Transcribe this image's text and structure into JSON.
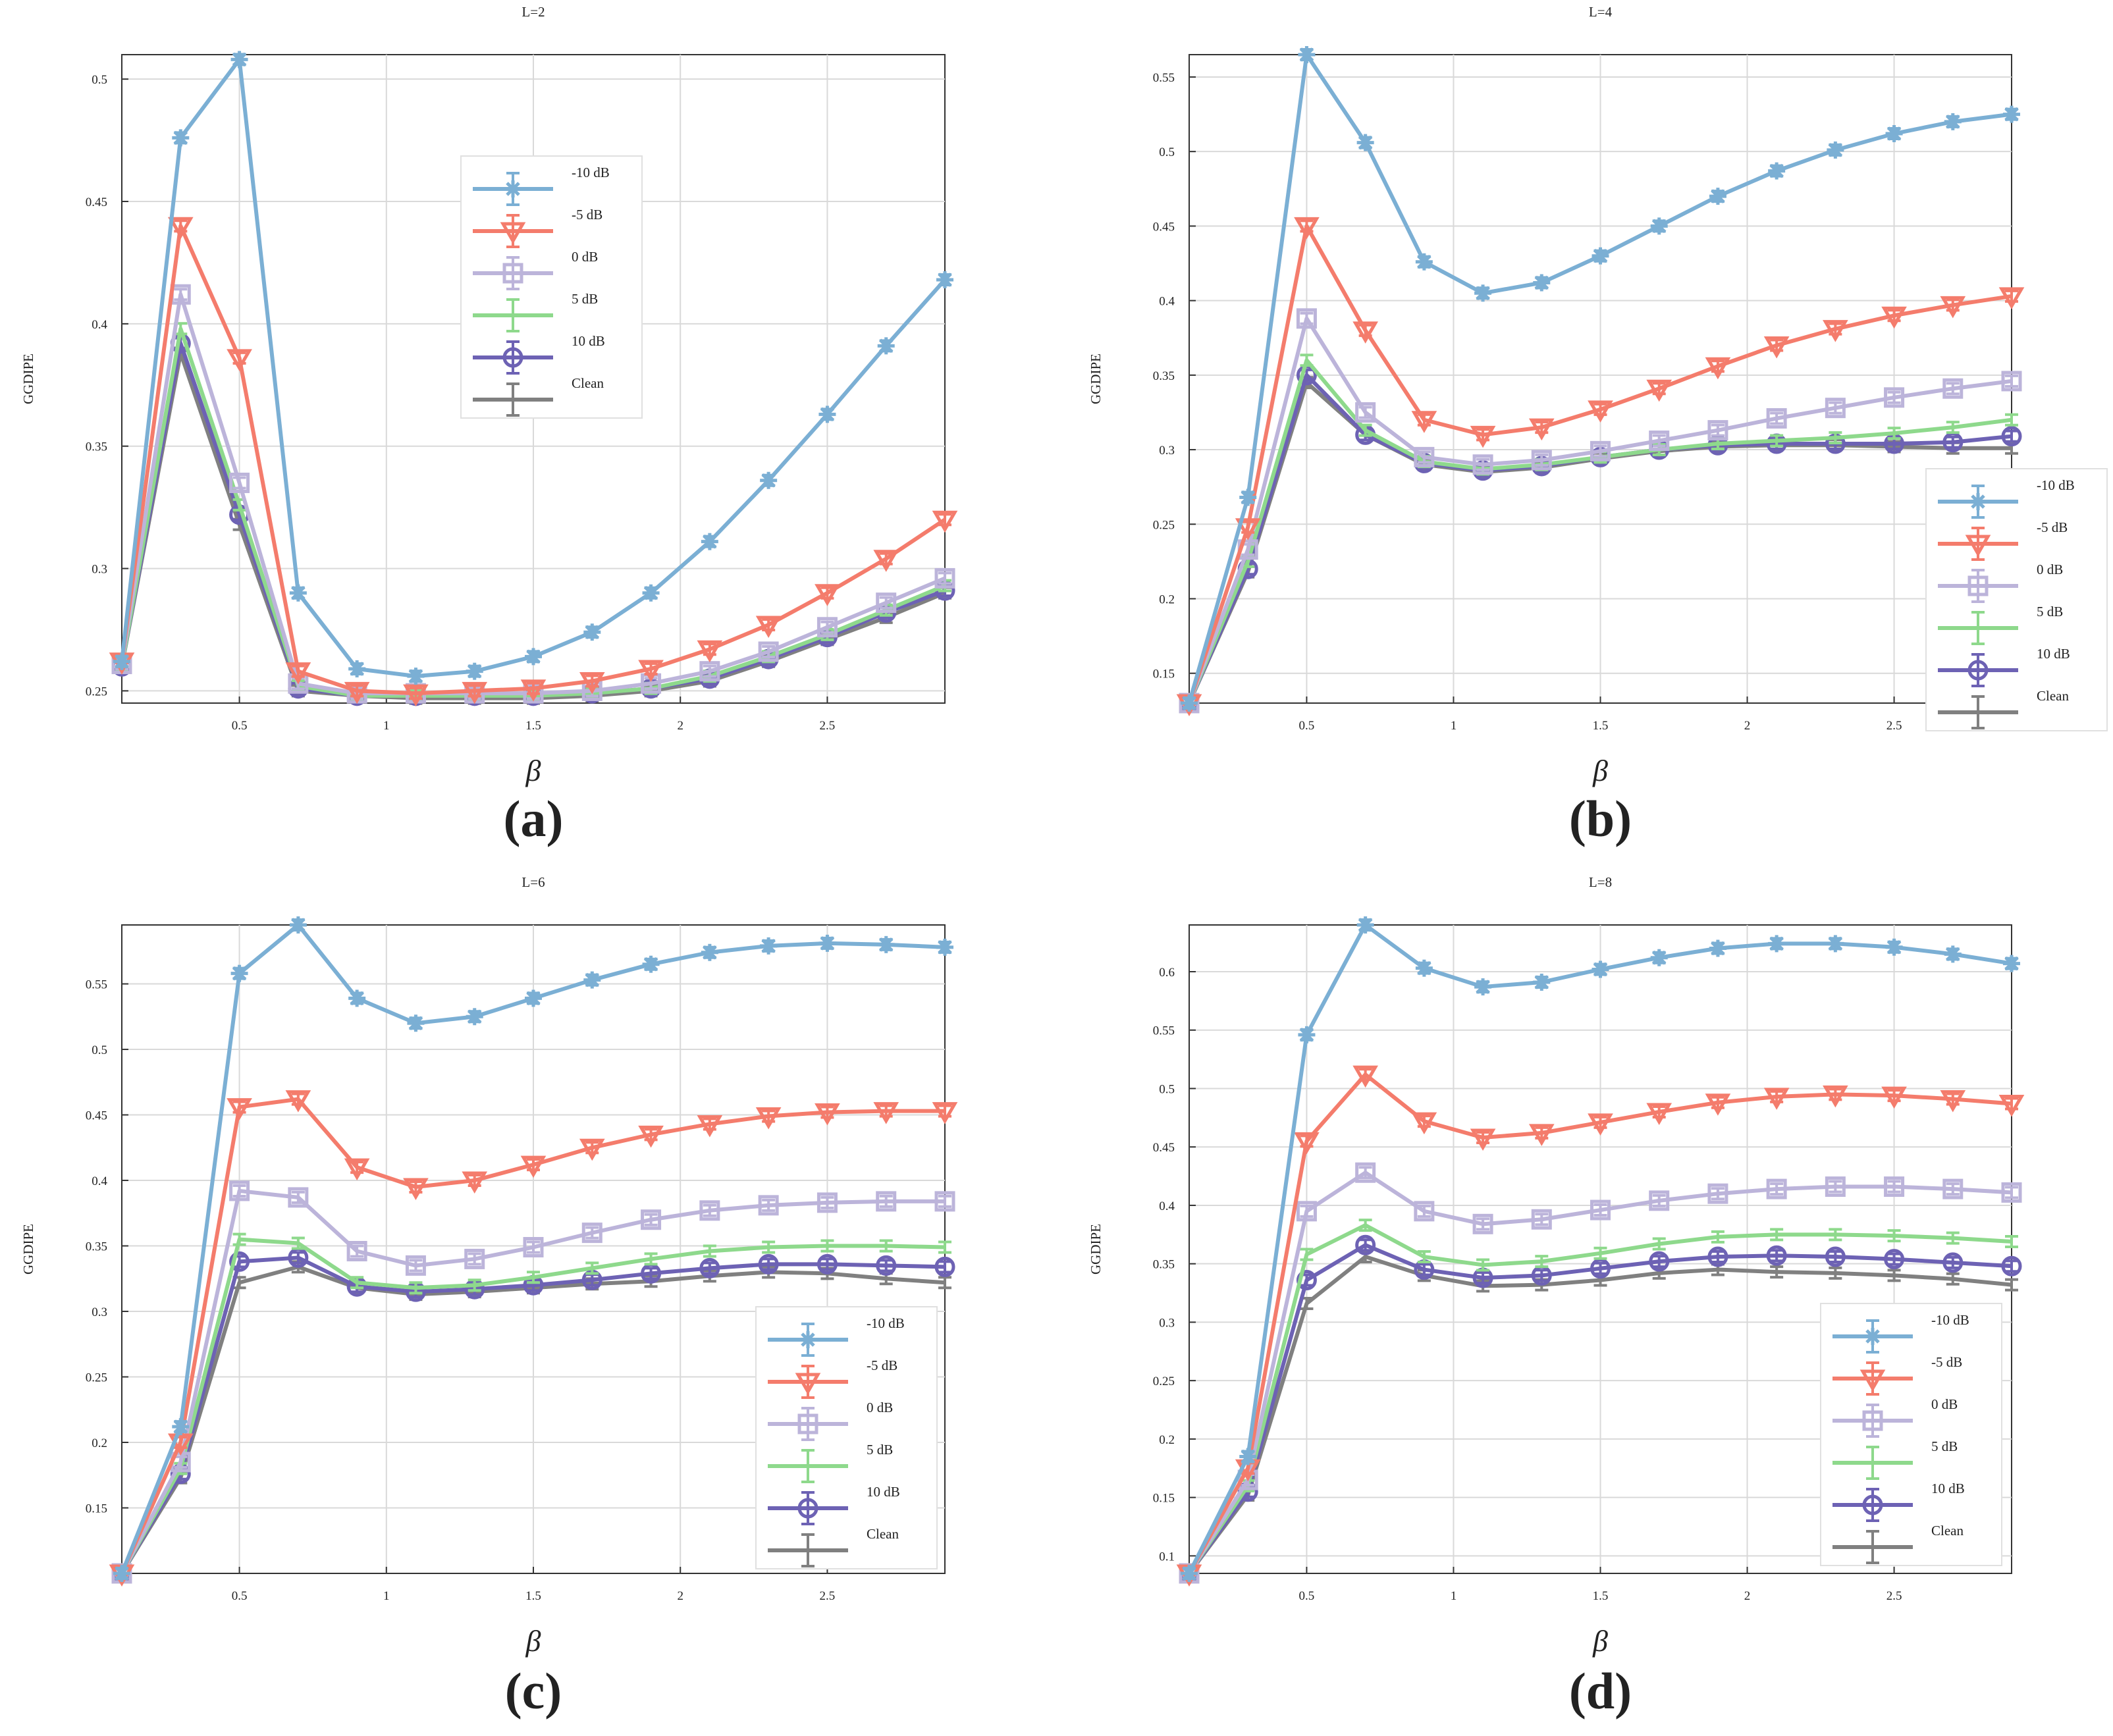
{
  "colors": {
    "-10 dB": "#7bafd4",
    "-5 dB": "#f47c6c",
    "0 dB": "#bcb4da",
    "5 dB": "#8ed98c",
    "10 dB": "#6d62b4",
    "Clean": "#808080"
  },
  "markers": {
    "-10 dB": "star",
    "-5 dB": "triangle-down",
    "0 dB": "square",
    "5 dB": "none",
    "10 dB": "circle",
    "Clean": "none"
  },
  "chart_data": [
    {
      "type": "line",
      "caption": "(a)",
      "title": "L=2",
      "xlabel": "β",
      "ylabel": "GGDIPE",
      "xlim": [
        0.1,
        2.9
      ],
      "ylim": [
        0.245,
        0.51
      ],
      "xticks": [
        0.5,
        1,
        1.5,
        2,
        2.5
      ],
      "yticks": [
        0.25,
        0.3,
        0.35,
        0.4,
        0.45,
        0.5
      ],
      "legend_position": "upper-middle",
      "x": [
        0.1,
        0.3,
        0.5,
        0.7,
        0.9,
        1.1,
        1.3,
        1.5,
        1.7,
        1.9,
        2.1,
        2.3,
        2.5,
        2.7,
        2.9
      ],
      "series": [
        {
          "name": "-10 dB",
          "values": [
            0.262,
            0.476,
            0.508,
            0.29,
            0.259,
            0.256,
            0.258,
            0.264,
            0.274,
            0.29,
            0.311,
            0.336,
            0.363,
            0.391,
            0.418
          ]
        },
        {
          "name": "-5 dB",
          "values": [
            0.262,
            0.44,
            0.386,
            0.258,
            0.25,
            0.249,
            0.25,
            0.251,
            0.254,
            0.259,
            0.267,
            0.277,
            0.29,
            0.304,
            0.32
          ]
        },
        {
          "name": "0 dB",
          "values": [
            0.261,
            0.412,
            0.335,
            0.253,
            0.249,
            0.249,
            0.249,
            0.249,
            0.25,
            0.253,
            0.258,
            0.266,
            0.276,
            0.286,
            0.296
          ]
        },
        {
          "name": "5 dB",
          "values": [
            0.26,
            0.398,
            0.326,
            0.252,
            0.248,
            0.248,
            0.248,
            0.248,
            0.249,
            0.251,
            0.256,
            0.264,
            0.273,
            0.283,
            0.293
          ]
        },
        {
          "name": "10 dB",
          "values": [
            0.26,
            0.392,
            0.322,
            0.251,
            0.248,
            0.248,
            0.248,
            0.248,
            0.249,
            0.251,
            0.255,
            0.263,
            0.272,
            0.282,
            0.291
          ]
        },
        {
          "name": "Clean",
          "values": [
            0.26,
            0.388,
            0.318,
            0.25,
            0.248,
            0.247,
            0.247,
            0.247,
            0.248,
            0.25,
            0.254,
            0.262,
            0.271,
            0.28,
            0.29
          ]
        }
      ]
    },
    {
      "type": "line",
      "caption": "(b)",
      "title": "L=4",
      "xlabel": "β",
      "ylabel": "GGDIPE",
      "xlim": [
        0.1,
        2.9
      ],
      "ylim": [
        0.13,
        0.565
      ],
      "xticks": [
        0.5,
        1,
        1.5,
        2,
        2.5
      ],
      "yticks": [
        0.15,
        0.2,
        0.25,
        0.3,
        0.35,
        0.4,
        0.45,
        0.5,
        0.55
      ],
      "legend_position": "lower-right",
      "x": [
        0.1,
        0.3,
        0.5,
        0.7,
        0.9,
        1.1,
        1.3,
        1.5,
        1.7,
        1.9,
        2.1,
        2.3,
        2.5,
        2.7,
        2.9
      ],
      "series": [
        {
          "name": "-10 dB",
          "values": [
            0.13,
            0.268,
            0.565,
            0.506,
            0.426,
            0.405,
            0.412,
            0.43,
            0.45,
            0.47,
            0.487,
            0.501,
            0.512,
            0.52,
            0.525
          ]
        },
        {
          "name": "-5 dB",
          "values": [
            0.13,
            0.248,
            0.45,
            0.38,
            0.32,
            0.31,
            0.315,
            0.327,
            0.341,
            0.356,
            0.37,
            0.381,
            0.39,
            0.397,
            0.403
          ]
        },
        {
          "name": "0 dB",
          "values": [
            0.13,
            0.233,
            0.388,
            0.325,
            0.295,
            0.29,
            0.293,
            0.299,
            0.306,
            0.313,
            0.321,
            0.328,
            0.335,
            0.341,
            0.346
          ]
        },
        {
          "name": "5 dB",
          "values": [
            0.13,
            0.225,
            0.36,
            0.313,
            0.292,
            0.287,
            0.29,
            0.295,
            0.3,
            0.304,
            0.306,
            0.308,
            0.311,
            0.315,
            0.32
          ]
        },
        {
          "name": "10 dB",
          "values": [
            0.13,
            0.22,
            0.35,
            0.31,
            0.291,
            0.286,
            0.289,
            0.295,
            0.3,
            0.303,
            0.304,
            0.304,
            0.304,
            0.305,
            0.309
          ]
        },
        {
          "name": "Clean",
          "values": [
            0.13,
            0.218,
            0.345,
            0.31,
            0.29,
            0.285,
            0.288,
            0.294,
            0.299,
            0.302,
            0.303,
            0.303,
            0.302,
            0.301,
            0.301
          ]
        }
      ]
    },
    {
      "type": "line",
      "caption": "(c)",
      "title": "L=6",
      "xlabel": "β",
      "ylabel": "GGDIPE",
      "xlim": [
        0.1,
        2.9
      ],
      "ylim": [
        0.1,
        0.595
      ],
      "xticks": [
        0.5,
        1,
        1.5,
        2,
        2.5
      ],
      "yticks": [
        0.15,
        0.2,
        0.25,
        0.3,
        0.35,
        0.4,
        0.45,
        0.5,
        0.55
      ],
      "legend_position": "lower-right",
      "x": [
        0.1,
        0.3,
        0.5,
        0.7,
        0.9,
        1.1,
        1.3,
        1.5,
        1.7,
        1.9,
        2.1,
        2.3,
        2.5,
        2.7,
        2.9
      ],
      "series": [
        {
          "name": "-10 dB",
          "values": [
            0.1,
            0.212,
            0.558,
            0.595,
            0.539,
            0.52,
            0.525,
            0.539,
            0.553,
            0.565,
            0.574,
            0.579,
            0.581,
            0.58,
            0.578
          ]
        },
        {
          "name": "-5 dB",
          "values": [
            0.1,
            0.2,
            0.456,
            0.462,
            0.41,
            0.395,
            0.4,
            0.412,
            0.425,
            0.435,
            0.443,
            0.449,
            0.452,
            0.453,
            0.453
          ]
        },
        {
          "name": "0 dB",
          "values": [
            0.1,
            0.185,
            0.392,
            0.387,
            0.346,
            0.335,
            0.34,
            0.349,
            0.36,
            0.37,
            0.377,
            0.381,
            0.383,
            0.384,
            0.384
          ]
        },
        {
          "name": "5 dB",
          "values": [
            0.1,
            0.18,
            0.355,
            0.352,
            0.322,
            0.318,
            0.32,
            0.326,
            0.333,
            0.34,
            0.346,
            0.349,
            0.35,
            0.35,
            0.349
          ]
        },
        {
          "name": "10 dB",
          "values": [
            0.1,
            0.176,
            0.338,
            0.341,
            0.319,
            0.315,
            0.317,
            0.32,
            0.324,
            0.329,
            0.333,
            0.336,
            0.336,
            0.335,
            0.334
          ]
        },
        {
          "name": "Clean",
          "values": [
            0.1,
            0.173,
            0.322,
            0.334,
            0.318,
            0.313,
            0.315,
            0.318,
            0.321,
            0.323,
            0.327,
            0.33,
            0.329,
            0.325,
            0.322
          ]
        }
      ]
    },
    {
      "type": "line",
      "caption": "(d)",
      "title": "L=8",
      "xlabel": "β",
      "ylabel": "GGDIPE",
      "xlim": [
        0.1,
        2.9
      ],
      "ylim": [
        0.085,
        0.64
      ],
      "xticks": [
        0.5,
        1,
        1.5,
        2,
        2.5
      ],
      "yticks": [
        0.1,
        0.15,
        0.2,
        0.25,
        0.3,
        0.35,
        0.4,
        0.45,
        0.5,
        0.55,
        0.6
      ],
      "legend_position": "lower-right",
      "x": [
        0.1,
        0.3,
        0.5,
        0.7,
        0.9,
        1.1,
        1.3,
        1.5,
        1.7,
        1.9,
        2.1,
        2.3,
        2.5,
        2.7,
        2.9
      ],
      "series": [
        {
          "name": "-10 dB",
          "values": [
            0.085,
            0.185,
            0.546,
            0.64,
            0.603,
            0.587,
            0.591,
            0.602,
            0.612,
            0.62,
            0.624,
            0.624,
            0.621,
            0.615,
            0.607
          ]
        },
        {
          "name": "-5 dB",
          "values": [
            0.085,
            0.175,
            0.455,
            0.512,
            0.472,
            0.458,
            0.462,
            0.471,
            0.48,
            0.488,
            0.493,
            0.495,
            0.494,
            0.491,
            0.487
          ]
        },
        {
          "name": "0 dB",
          "values": [
            0.085,
            0.165,
            0.395,
            0.428,
            0.395,
            0.384,
            0.388,
            0.396,
            0.404,
            0.41,
            0.414,
            0.416,
            0.416,
            0.414,
            0.411
          ]
        },
        {
          "name": "5 dB",
          "values": [
            0.085,
            0.16,
            0.358,
            0.383,
            0.356,
            0.349,
            0.352,
            0.359,
            0.367,
            0.373,
            0.375,
            0.375,
            0.374,
            0.372,
            0.369
          ]
        },
        {
          "name": "10 dB",
          "values": [
            0.085,
            0.155,
            0.336,
            0.366,
            0.345,
            0.338,
            0.34,
            0.346,
            0.352,
            0.356,
            0.357,
            0.356,
            0.354,
            0.351,
            0.348
          ]
        },
        {
          "name": "Clean",
          "values": [
            0.085,
            0.152,
            0.316,
            0.356,
            0.34,
            0.331,
            0.332,
            0.336,
            0.342,
            0.345,
            0.343,
            0.342,
            0.34,
            0.337,
            0.332
          ]
        }
      ]
    }
  ]
}
